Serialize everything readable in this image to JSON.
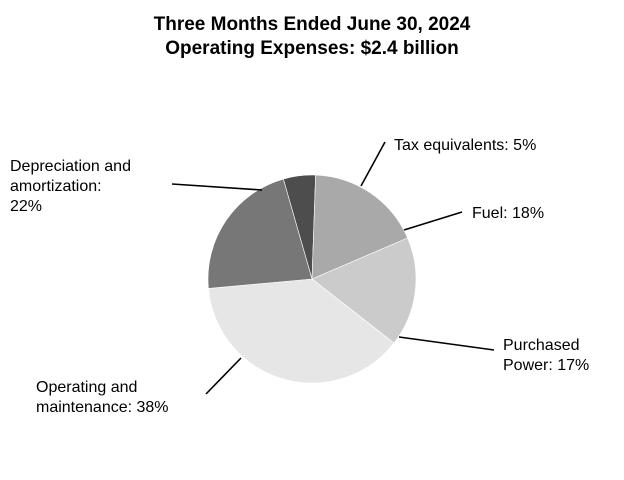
{
  "chart_data": {
    "type": "pie",
    "title": "Three Months Ended June 30, 2024",
    "subtitle": "Operating Expenses: $2.4 billion",
    "slices": [
      {
        "label_lines": [
          "Tax equivalents: 5%"
        ],
        "value": 5,
        "color": "#4d4d4d"
      },
      {
        "label_lines": [
          "Fuel: 18%"
        ],
        "value": 18,
        "color": "#a9a9a9"
      },
      {
        "label_lines": [
          "Purchased",
          "Power: 17%"
        ],
        "value": 17,
        "color": "#cbcbcb"
      },
      {
        "label_lines": [
          "Operating and",
          "maintenance: 38%"
        ],
        "value": 38,
        "color": "#e6e6e6"
      },
      {
        "label_lines": [
          "Depreciation and",
          "amortization:",
          "22%"
        ],
        "value": 22,
        "color": "#777777"
      }
    ],
    "start_angle_deg": 344,
    "direction": "clockwise"
  }
}
